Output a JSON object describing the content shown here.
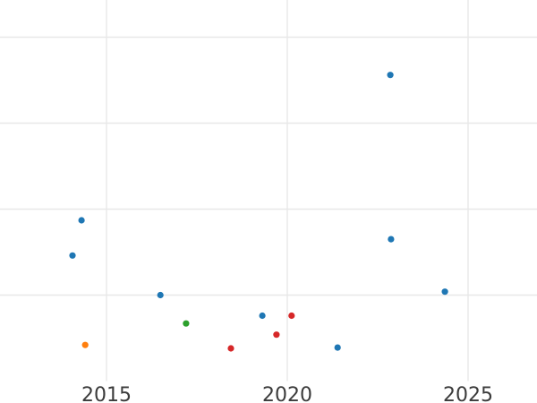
{
  "chart_data": {
    "type": "scatter",
    "title": "",
    "xlabel": "",
    "ylabel": "",
    "grid": true,
    "legend_position": "none",
    "x_domain": [
      2012.06,
      2026.91
    ],
    "x_ticks": [
      {
        "value": 2015,
        "label": "2015"
      },
      {
        "value": 2020,
        "label": "2020"
      },
      {
        "value": 2025,
        "label": "2025"
      }
    ],
    "y_domain": [
      0,
      4.43
    ],
    "y_axis_unlabeled": true,
    "y_gridline_units": [
      1,
      2,
      3,
      4
    ],
    "y_tick_labels": [],
    "series": [
      {
        "name": "blue",
        "color": "#1f77b4",
        "points": [
          {
            "x": 2014.06,
            "y": 1.46
          },
          {
            "x": 2014.31,
            "y": 1.87
          },
          {
            "x": 2016.49,
            "y": 1.0
          },
          {
            "x": 2019.31,
            "y": 0.76
          },
          {
            "x": 2021.39,
            "y": 0.39
          },
          {
            "x": 2022.85,
            "y": 3.56
          },
          {
            "x": 2022.87,
            "y": 1.65
          },
          {
            "x": 2024.36,
            "y": 1.04
          }
        ]
      },
      {
        "name": "orange",
        "color": "#ff7f0e",
        "points": [
          {
            "x": 2014.41,
            "y": 0.42
          }
        ]
      },
      {
        "name": "green",
        "color": "#2ca02c",
        "points": [
          {
            "x": 2017.2,
            "y": 0.67
          }
        ]
      },
      {
        "name": "red",
        "color": "#d62728",
        "points": [
          {
            "x": 2018.44,
            "y": 0.38
          },
          {
            "x": 2019.7,
            "y": 0.54
          },
          {
            "x": 2020.12,
            "y": 0.76
          }
        ]
      }
    ],
    "colors": {
      "background": "#ffffff",
      "grid": "#e8e8e8",
      "tick_label": "#3b3b3b"
    }
  }
}
